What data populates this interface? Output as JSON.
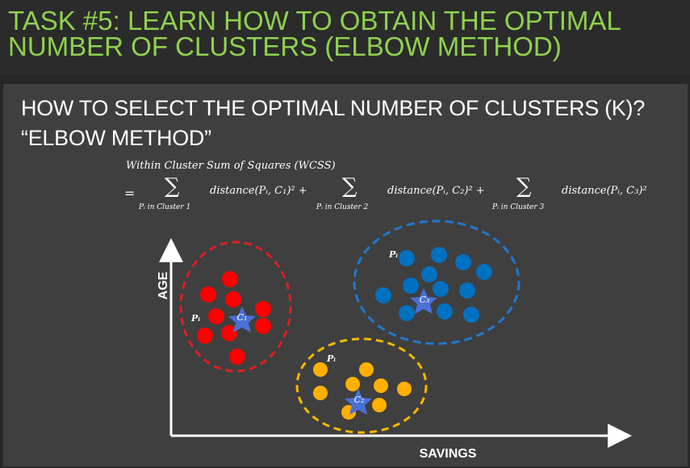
{
  "task_title": "TASK #5: LEARN HOW TO OBTAIN THE OPTIMAL NUMBER OF CLUSTERS (ELBOW METHOD)",
  "heading_line1": "HOW TO SELECT THE OPTIMAL NUMBER OF CLUSTERS (K)?",
  "heading_line2": "“ELBOW METHOD”",
  "formula": {
    "label": "Within Cluster Sum of Squares (WCSS)",
    "equals": "=",
    "sigma": "∑",
    "terms": [
      {
        "expr": "distance(Pᵢ, C₁)² +",
        "sub": "Pᵢ in Cluster 1"
      },
      {
        "expr": "distance(Pᵢ, C₂)² +",
        "sub": "Pᵢ in Cluster 2"
      },
      {
        "expr": "distance(Pᵢ, C₃)²",
        "sub": "Pᵢ in Cluster 3"
      }
    ]
  },
  "axes": {
    "y_label": "AGE",
    "x_label": "SAVINGS"
  },
  "clusters": [
    {
      "centroid_label": "C₁",
      "point_label": "Pᵢ",
      "color": "#ff0000",
      "outline": "#e02020"
    },
    {
      "centroid_label": "C₂",
      "point_label": "Pᵢ",
      "color": "#ffb000",
      "outline": "#f5b800"
    },
    {
      "centroid_label": "C₃",
      "point_label": "Pᵢ",
      "color": "#0070c0",
      "outline": "#1f78d1"
    }
  ],
  "colors": {
    "title": "#8fd14f",
    "centroid_star": "#4a6fd6"
  }
}
